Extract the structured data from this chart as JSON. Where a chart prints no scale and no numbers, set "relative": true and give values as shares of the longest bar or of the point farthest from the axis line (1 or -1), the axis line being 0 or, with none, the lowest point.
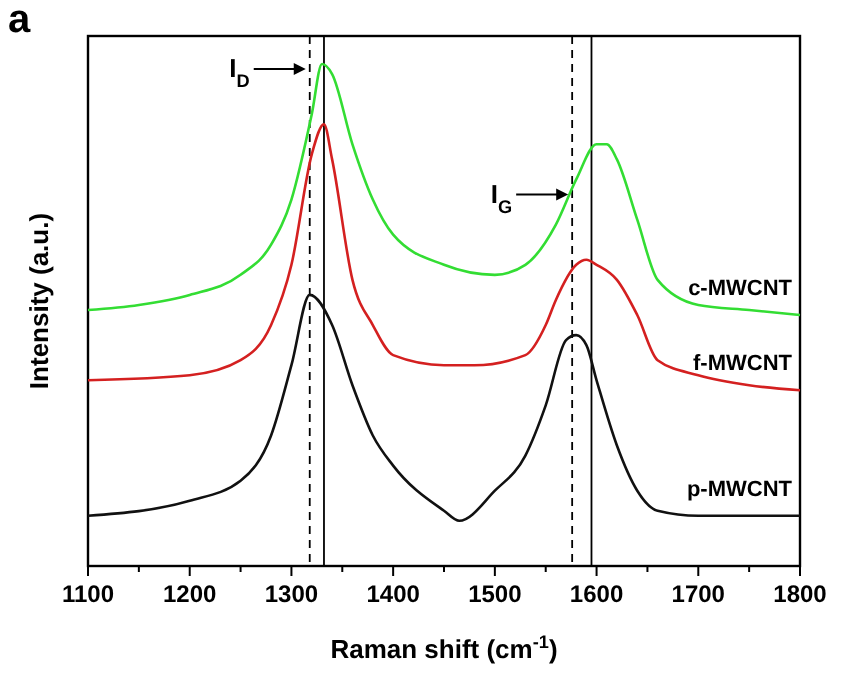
{
  "chart_data": {
    "type": "line",
    "relative": true,
    "xlabel": "Raman shift (cm$^{-1}$)",
    "ylabel": "Intensity (a.u.)",
    "xlim": [
      1100,
      1800
    ],
    "xticks": [
      1100,
      {
        "value": 1150,
        "label": null
      },
      1200,
      {
        "value": 1250,
        "label": null
      },
      1300,
      {
        "value": 1350,
        "label": null
      },
      1400,
      {
        "value": 1450,
        "label": null
      },
      1500,
      {
        "value": 1550,
        "label": null
      },
      1600,
      {
        "value": 1650,
        "label": null
      },
      1700,
      {
        "value": 1750,
        "label": null
      },
      1800
    ],
    "tick_labels": "x",
    "grid": false,
    "marker": "none",
    "line_style": "solid",
    "series": [
      {
        "name": "c-MWCNT",
        "color": "#33dd33",
        "x": [
          1100,
          1150,
          1200,
          1250,
          1280,
          1300,
          1320,
          1330,
          1340,
          1360,
          1380,
          1400,
          1450,
          1500,
          1530,
          1560,
          1580,
          1600,
          1610,
          1620,
          1640,
          1660,
          1700,
          1750,
          1800
        ],
        "values": [
          0.51,
          0.52,
          0.54,
          0.58,
          0.64,
          0.73,
          0.9,
          1.0,
          0.98,
          0.84,
          0.73,
          0.66,
          0.6,
          0.58,
          0.6,
          0.68,
          0.77,
          0.84,
          0.84,
          0.81,
          0.69,
          0.57,
          0.52,
          0.51,
          0.5
        ]
      },
      {
        "name": "f-MWCNT",
        "color": "#d42020",
        "x": [
          1100,
          1200,
          1250,
          1280,
          1300,
          1320,
          1332,
          1340,
          1360,
          1380,
          1400,
          1450,
          1480,
          1530,
          1550,
          1560,
          1580,
          1590,
          1600,
          1620,
          1640,
          1660,
          1700,
          1750,
          1800
        ],
        "values": [
          0.37,
          0.38,
          0.41,
          0.48,
          0.6,
          0.82,
          0.88,
          0.81,
          0.57,
          0.48,
          0.42,
          0.4,
          0.4,
          0.42,
          0.48,
          0.53,
          0.6,
          0.61,
          0.6,
          0.57,
          0.5,
          0.41,
          0.38,
          0.36,
          0.35
        ]
      },
      {
        "name": "p-MWCNT",
        "color": "#111111",
        "x": [
          1100,
          1200,
          1250,
          1280,
          1300,
          1318,
          1340,
          1360,
          1380,
          1400,
          1450,
          1465,
          1500,
          1530,
          1550,
          1570,
          1580,
          1590,
          1600,
          1620,
          1640,
          1660,
          1700,
          1800
        ],
        "values": [
          0.1,
          0.13,
          0.17,
          0.26,
          0.4,
          0.54,
          0.48,
          0.36,
          0.26,
          0.2,
          0.11,
          0.09,
          0.15,
          0.22,
          0.32,
          0.45,
          0.46,
          0.44,
          0.37,
          0.24,
          0.15,
          0.11,
          0.1,
          0.1
        ]
      }
    ],
    "ref_lines": [
      {
        "axis": "x",
        "value": 1318,
        "color": "#000000",
        "line_style": "dashed"
      },
      {
        "axis": "x",
        "value": 1332,
        "color": "#000000",
        "line_style": "solid"
      },
      {
        "axis": "x",
        "value": 1576,
        "color": "#000000",
        "line_style": "dashed"
      },
      {
        "axis": "x",
        "value": 1595,
        "color": "#000000",
        "line_style": "solid"
      }
    ],
    "annotations": [
      "a",
      {
        "text": "I$_{D}$",
        "x": 1318,
        "y": 0.99
      },
      {
        "text": "I$_{G}$",
        "x": 1576,
        "y": 0.74
      }
    ]
  }
}
